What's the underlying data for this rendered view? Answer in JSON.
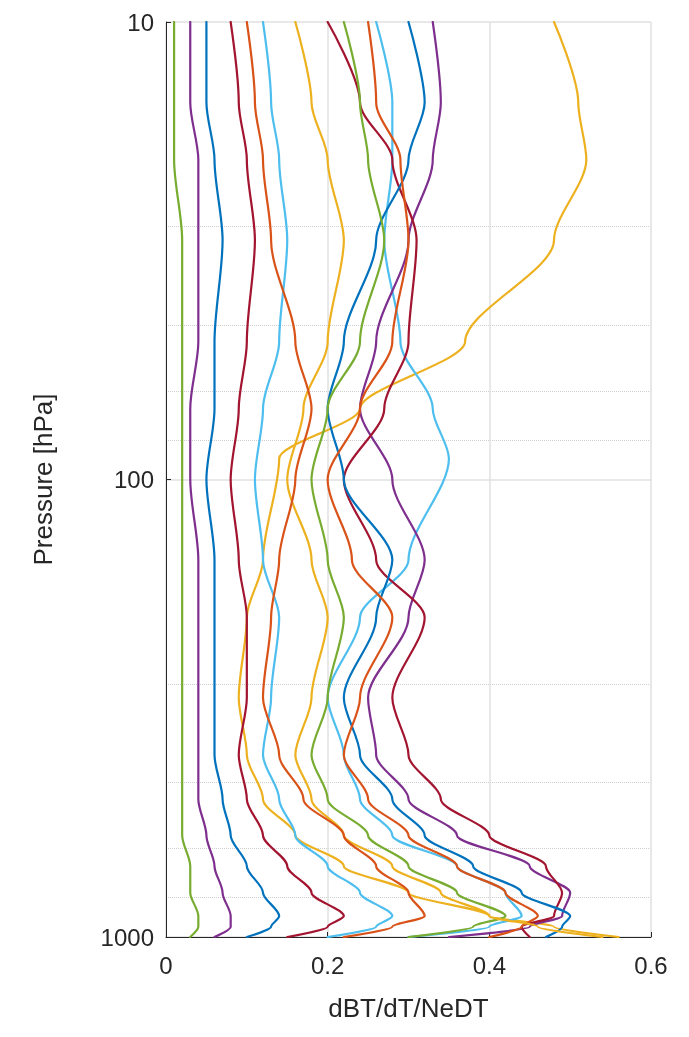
{
  "chart_data": {
    "type": "line",
    "xlabel": "dBT/dT/NeDT",
    "ylabel": "Pressure [hPa]",
    "xlim": [
      0,
      0.6
    ],
    "xticks": [
      0,
      0.2,
      0.4,
      0.6
    ],
    "ylim": [
      1000,
      10
    ],
    "yticks": [
      10,
      100,
      1000
    ],
    "log": "y",
    "grid": true,
    "marker": "none",
    "line_style": "solid",
    "series": [
      {
        "color": "#edb120",
        "x": [
          0.48,
          0.51,
          0.52,
          0.48,
          0.37,
          0.24,
          0.14,
          0.12,
          0.1,
          0.09,
          0.1,
          0.12,
          0.16,
          0.22,
          0.3,
          0.4,
          0.48,
          0.56
        ],
        "values": [
          10,
          15,
          20,
          30,
          50,
          70,
          90,
          150,
          200,
          300,
          400,
          500,
          600,
          700,
          800,
          900,
          950,
          1000
        ]
      },
      {
        "color": "#4dbeee",
        "x": [
          0.26,
          0.28,
          0.28,
          0.27,
          0.29,
          0.33,
          0.35,
          0.3,
          0.24,
          0.2,
          0.22,
          0.24,
          0.28,
          0.36,
          0.42,
          0.44,
          0.4,
          0.3
        ],
        "values": [
          10,
          15,
          20,
          30,
          50,
          70,
          90,
          150,
          200,
          300,
          400,
          500,
          600,
          700,
          800,
          900,
          950,
          1000
        ]
      },
      {
        "color": "#7e2f8e",
        "x": [
          0.33,
          0.34,
          0.33,
          0.3,
          0.26,
          0.24,
          0.28,
          0.32,
          0.3,
          0.25,
          0.26,
          0.3,
          0.36,
          0.45,
          0.5,
          0.49,
          0.45,
          0.35
        ],
        "values": [
          10,
          15,
          20,
          30,
          50,
          70,
          100,
          150,
          200,
          300,
          400,
          500,
          600,
          700,
          800,
          900,
          950,
          1000
        ]
      },
      {
        "color": "#a2142f",
        "x": [
          0.2,
          0.24,
          0.28,
          0.31,
          0.3,
          0.27,
          0.22,
          0.26,
          0.32,
          0.28,
          0.3,
          0.34,
          0.4,
          0.47,
          0.49,
          0.48,
          0.44,
          0.45
        ],
        "values": [
          10,
          15,
          20,
          30,
          50,
          70,
          100,
          150,
          200,
          300,
          400,
          500,
          600,
          700,
          800,
          900,
          950,
          1000
        ]
      },
      {
        "color": "#0072bd",
        "x": [
          0.3,
          0.32,
          0.3,
          0.26,
          0.22,
          0.2,
          0.22,
          0.28,
          0.26,
          0.22,
          0.24,
          0.28,
          0.32,
          0.38,
          0.44,
          0.5,
          0.49,
          0.47
        ],
        "values": [
          10,
          15,
          20,
          30,
          50,
          70,
          100,
          150,
          200,
          300,
          400,
          500,
          600,
          700,
          800,
          900,
          950,
          1000
        ]
      },
      {
        "color": "#d95319",
        "x": [
          0.25,
          0.26,
          0.29,
          0.3,
          0.28,
          0.24,
          0.2,
          0.23,
          0.28,
          0.24,
          0.22,
          0.25,
          0.3,
          0.36,
          0.42,
          0.46,
          0.44,
          0.4
        ],
        "values": [
          10,
          15,
          20,
          30,
          50,
          70,
          100,
          150,
          200,
          300,
          400,
          500,
          600,
          700,
          800,
          900,
          950,
          1000
        ]
      },
      {
        "color": "#77ac30",
        "x": [
          0.22,
          0.24,
          0.25,
          0.27,
          0.24,
          0.2,
          0.18,
          0.2,
          0.22,
          0.2,
          0.18,
          0.2,
          0.25,
          0.3,
          0.36,
          0.42,
          0.38,
          0.3
        ],
        "values": [
          10,
          15,
          20,
          30,
          50,
          70,
          100,
          150,
          200,
          300,
          400,
          500,
          600,
          700,
          800,
          900,
          950,
          1000
        ]
      },
      {
        "color": "#edb120",
        "x": [
          0.16,
          0.18,
          0.2,
          0.22,
          0.2,
          0.17,
          0.15,
          0.18,
          0.2,
          0.18,
          0.16,
          0.18,
          0.22,
          0.28,
          0.34,
          0.4,
          0.46,
          0.54
        ],
        "values": [
          10,
          15,
          20,
          30,
          50,
          70,
          100,
          150,
          200,
          300,
          400,
          500,
          600,
          700,
          800,
          900,
          950,
          1000
        ]
      },
      {
        "color": "#4dbeee",
        "x": [
          0.12,
          0.13,
          0.14,
          0.15,
          0.14,
          0.12,
          0.11,
          0.12,
          0.14,
          0.13,
          0.12,
          0.14,
          0.16,
          0.2,
          0.24,
          0.28,
          0.26,
          0.2
        ],
        "values": [
          10,
          15,
          20,
          30,
          50,
          70,
          100,
          150,
          200,
          300,
          400,
          500,
          600,
          700,
          800,
          900,
          950,
          1000
        ]
      },
      {
        "color": "#a2142f",
        "x": [
          0.08,
          0.09,
          0.1,
          0.11,
          0.1,
          0.09,
          0.08,
          0.09,
          0.1,
          0.1,
          0.09,
          0.1,
          0.12,
          0.15,
          0.18,
          0.22,
          0.2,
          0.15
        ],
        "values": [
          10,
          15,
          20,
          30,
          50,
          70,
          100,
          150,
          200,
          300,
          400,
          500,
          600,
          700,
          800,
          900,
          950,
          1000
        ]
      },
      {
        "color": "#0072bd",
        "x": [
          0.05,
          0.05,
          0.06,
          0.07,
          0.06,
          0.06,
          0.05,
          0.06,
          0.06,
          0.06,
          0.06,
          0.07,
          0.08,
          0.1,
          0.12,
          0.14,
          0.13,
          0.1
        ],
        "values": [
          10,
          15,
          20,
          30,
          50,
          70,
          100,
          150,
          200,
          300,
          400,
          500,
          600,
          700,
          800,
          900,
          950,
          1000
        ]
      },
      {
        "color": "#7e2f8e",
        "x": [
          0.03,
          0.03,
          0.04,
          0.04,
          0.04,
          0.03,
          0.03,
          0.04,
          0.04,
          0.04,
          0.04,
          0.04,
          0.05,
          0.06,
          0.07,
          0.08,
          0.08,
          0.06
        ],
        "values": [
          10,
          15,
          20,
          30,
          50,
          70,
          100,
          150,
          200,
          300,
          400,
          500,
          600,
          700,
          800,
          900,
          950,
          1000
        ]
      },
      {
        "color": "#77ac30",
        "x": [
          0.01,
          0.01,
          0.01,
          0.02,
          0.02,
          0.02,
          0.02,
          0.02,
          0.02,
          0.02,
          0.02,
          0.02,
          0.02,
          0.03,
          0.03,
          0.04,
          0.04,
          0.03
        ],
        "values": [
          10,
          15,
          20,
          30,
          50,
          70,
          100,
          150,
          200,
          300,
          400,
          500,
          600,
          700,
          800,
          900,
          950,
          1000
        ]
      },
      {
        "color": "#d95319",
        "x": [
          0.1,
          0.11,
          0.12,
          0.13,
          0.16,
          0.18,
          0.16,
          0.14,
          0.13,
          0.12,
          0.14,
          0.17,
          0.22,
          0.26,
          0.3,
          0.32,
          0.28,
          0.22
        ],
        "values": [
          10,
          15,
          20,
          30,
          50,
          70,
          100,
          150,
          200,
          300,
          400,
          500,
          600,
          700,
          800,
          900,
          950,
          1000
        ]
      }
    ]
  }
}
